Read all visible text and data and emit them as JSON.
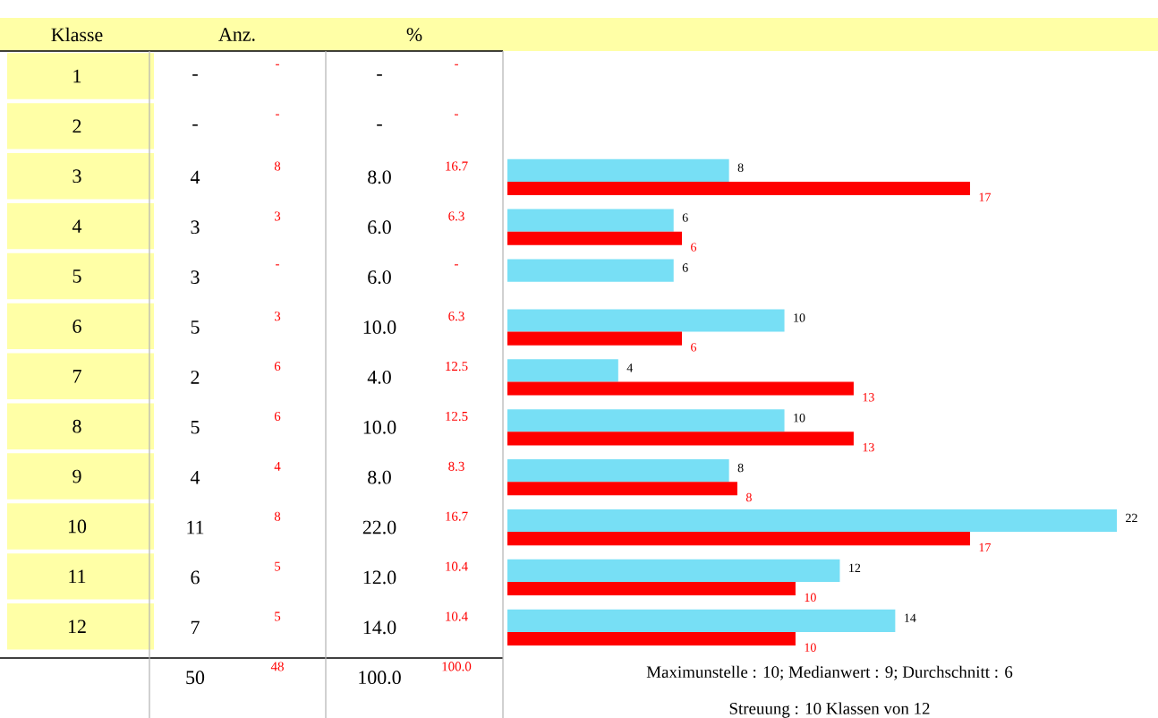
{
  "chart_data": [
    {
      "type": "other",
      "annotations": [
        "Anz.",
        "%",
        "-",
        "-",
        "-",
        "-",
        "-",
        "-",
        "-",
        "-",
        "4",
        "8",
        "8.0",
        "16.7",
        "3",
        "3",
        "6.0",
        "6.3",
        "3",
        "-",
        "6.0",
        "-",
        "5",
        "3",
        "10.0",
        "6.3",
        "2",
        "6",
        "4.0",
        "12.5",
        "5",
        "6",
        "10.0",
        "12.5",
        "4",
        "4",
        "8.0",
        "8.3",
        "11",
        "8",
        "22.0",
        "16.7",
        "6",
        "5",
        "12.0",
        "10.4",
        "7",
        "5",
        "14.0",
        "10.4",
        "50",
        "48",
        "100.0",
        "100.0"
      ]
    },
    {
      "type": "bar",
      "orientation": "horizontal",
      "ylabel": "Klasse",
      "categories": [
        "1",
        "2",
        "3",
        "4",
        "5",
        "6",
        "7",
        "8",
        "9",
        "10",
        "11",
        "12"
      ],
      "series": [
        {
          "color": "#77dff5",
          "values": [
            null,
            null,
            8.0,
            6.0,
            6.0,
            10.0,
            4.0,
            10.0,
            8.0,
            22.0,
            12.0,
            14.0
          ],
          "value_labels": [
            null,
            null,
            "8",
            "6",
            "6",
            "10",
            "4",
            "10",
            "8",
            "22",
            "12",
            "14"
          ]
        },
        {
          "color": "#ff0000",
          "values": [
            null,
            null,
            16.7,
            6.3,
            null,
            6.3,
            12.5,
            12.5,
            8.3,
            16.7,
            10.4,
            10.4
          ],
          "value_labels": [
            null,
            null,
            "17",
            "6",
            null,
            "6",
            "13",
            "13",
            "8",
            "17",
            "10",
            "10"
          ]
        }
      ],
      "annotations": [
        "Maximunstelle : 10;  Medianwert : 9;  Durchschnitt : 6",
        "Streuung : 10 Klassen von 12"
      ]
    }
  ]
}
